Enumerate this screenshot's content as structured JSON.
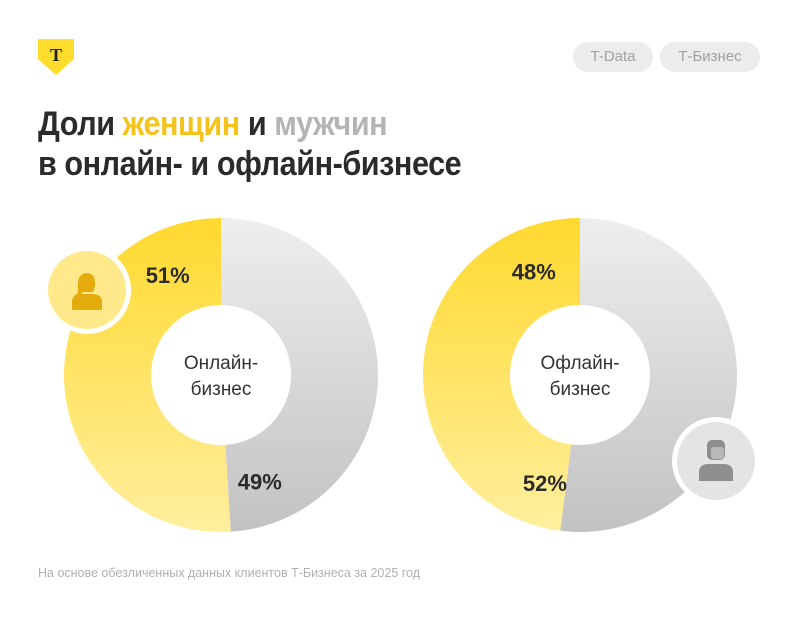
{
  "header": {
    "logo_letter": "Т",
    "tags": [
      "T-Data",
      "Т-Бизнес"
    ],
    "title_line1": {
      "part1": "Доли ",
      "women": "женщин",
      "part2": " и ",
      "men": "мужчин"
    },
    "title_line2": "в онлайн- и офлайн-бизнесе"
  },
  "colors": {
    "women": "#FFD92E",
    "men": "#C8C8C8",
    "accent": "#F5C31C"
  },
  "chart_data": [
    {
      "type": "pie",
      "center_label": [
        "Онлайн-",
        "бизнес"
      ],
      "categories": [
        "женщин",
        "мужчин"
      ],
      "values": [
        51,
        49
      ],
      "labels": [
        "51%",
        "49%"
      ],
      "icon": "woman-icon"
    },
    {
      "type": "pie",
      "center_label": [
        "Офлайн-",
        "бизнес"
      ],
      "categories": [
        "женщин",
        "мужчин"
      ],
      "values": [
        48,
        52
      ],
      "labels": [
        "48%",
        "52%"
      ],
      "icon": "man-icon"
    }
  ],
  "footnote": "На основе обезличенных данных клиентов Т-Бизнеса за 2025 год"
}
